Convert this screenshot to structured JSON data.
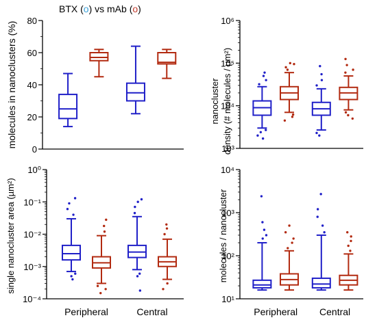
{
  "header": {
    "prefix": "BTX (",
    "btx_marker": "o",
    "middle": ") vs mAb (",
    "mab_marker": "o",
    "suffix": ")"
  },
  "colors": {
    "btx": "#1f1fc8",
    "mab": "#b22a10",
    "axis": "#000000"
  },
  "chart_data": [
    {
      "type": "box",
      "panel": "top-left",
      "ylabel": "molecules in nanoclusters (%)",
      "yscale": "linear",
      "ylim": [
        0,
        80
      ],
      "yticks": [
        "0",
        "20",
        "40",
        "60",
        "80"
      ],
      "categories": [],
      "series": [
        {
          "group": "BTX",
          "position": "peripheral",
          "min": 14,
          "q1": 19,
          "median": 25,
          "q3": 34,
          "max": 47,
          "outliers": []
        },
        {
          "group": "mAb",
          "position": "peripheral",
          "min": 45,
          "q1": 55,
          "median": 57,
          "q3": 60,
          "max": 62,
          "outliers": []
        },
        {
          "group": "BTX",
          "position": "central",
          "min": 22,
          "q1": 30,
          "median": 35,
          "q3": 41,
          "max": 64,
          "outliers": []
        },
        {
          "group": "mAb",
          "position": "central",
          "min": 44,
          "q1": 53,
          "median": 54,
          "q3": 60,
          "max": 62,
          "outliers": []
        }
      ]
    },
    {
      "type": "box",
      "panel": "top-right",
      "ylabel_line1": "nanocluster",
      "ylabel_line2": "density (# molecules / µm²)",
      "yscale": "log",
      "ylim": [
        1000,
        1000000
      ],
      "yticks": [
        "10³",
        "10⁴",
        "10⁵",
        "10⁶"
      ],
      "categories": [],
      "series": [
        {
          "group": "BTX",
          "position": "peripheral",
          "min": 3000,
          "q1": 6000,
          "median": 9000,
          "q3": 13000,
          "max": 28000,
          "outliers": [
            1700,
            2000,
            2400,
            2700,
            32000,
            40000,
            50000,
            60000
          ]
        },
        {
          "group": "mAb",
          "position": "peripheral",
          "min": 7000,
          "q1": 14000,
          "median": 20000,
          "q3": 28000,
          "max": 60000,
          "outliers": [
            4500,
            5500,
            6200,
            70000,
            80000,
            95000,
            100000
          ]
        },
        {
          "group": "BTX",
          "position": "central",
          "min": 2700,
          "q1": 6000,
          "median": 8500,
          "q3": 12000,
          "max": 25000,
          "outliers": [
            2000,
            2300,
            30000,
            40000,
            55000,
            85000
          ]
        },
        {
          "group": "mAb",
          "position": "central",
          "min": 8000,
          "q1": 14000,
          "median": 20000,
          "q3": 27000,
          "max": 50000,
          "outliers": [
            5000,
            6000,
            7000,
            60000,
            70000,
            90000,
            125000
          ]
        }
      ]
    },
    {
      "type": "box",
      "panel": "bottom-left",
      "ylabel": "single nanocluster area (µm²)",
      "yscale": "log",
      "ylim": [
        0.0001,
        1
      ],
      "yticks": [
        "10⁻⁴",
        "10⁻³",
        "10⁻²",
        "10⁻¹",
        "10⁰"
      ],
      "categories": [
        "Peripheral",
        "Central"
      ],
      "series": [
        {
          "group": "BTX",
          "position": "peripheral",
          "min": 0.0007,
          "q1": 0.0016,
          "median": 0.0025,
          "q3": 0.0045,
          "max": 0.03,
          "outliers": [
            0.0004,
            0.0005,
            0.0006,
            0.04,
            0.06,
            0.09,
            0.13
          ]
        },
        {
          "group": "mAb",
          "position": "peripheral",
          "min": 0.0003,
          "q1": 0.0009,
          "median": 0.0013,
          "q3": 0.002,
          "max": 0.009,
          "outliers": [
            0.00015,
            0.0002,
            0.00025,
            0.012,
            0.018,
            0.028
          ]
        },
        {
          "group": "BTX",
          "position": "central",
          "min": 0.0008,
          "q1": 0.0019,
          "median": 0.0028,
          "q3": 0.0045,
          "max": 0.035,
          "outliers": [
            0.00018,
            0.0005,
            0.0006,
            0.045,
            0.07,
            0.1,
            0.12
          ]
        },
        {
          "group": "mAb",
          "position": "central",
          "min": 0.0004,
          "q1": 0.001,
          "median": 0.0014,
          "q3": 0.002,
          "max": 0.007,
          "outliers": [
            0.0002,
            0.0003,
            0.01,
            0.015,
            0.02
          ]
        }
      ]
    },
    {
      "type": "box",
      "panel": "bottom-right",
      "ylabel": "molecules / nanocluster",
      "yscale": "log",
      "ylim": [
        10,
        10000
      ],
      "yticks": [
        "10¹",
        "10²",
        "10³",
        "10⁴"
      ],
      "categories": [
        "Peripheral",
        "Central"
      ],
      "series": [
        {
          "group": "BTX",
          "position": "peripheral",
          "min": 16,
          "q1": 18,
          "median": 21,
          "q3": 27,
          "max": 200,
          "outliers": [
            250,
            300,
            400,
            600,
            2400
          ]
        },
        {
          "group": "mAb",
          "position": "peripheral",
          "min": 16,
          "q1": 21,
          "median": 28,
          "q3": 38,
          "max": 130,
          "outliers": [
            150,
            200,
            250,
            350,
            500
          ]
        },
        {
          "group": "BTX",
          "position": "central",
          "min": 16,
          "q1": 18,
          "median": 22,
          "q3": 30,
          "max": 300,
          "outliers": [
            350,
            500,
            800,
            1200,
            2700
          ]
        },
        {
          "group": "mAb",
          "position": "central",
          "min": 16,
          "q1": 21,
          "median": 27,
          "q3": 35,
          "max": 110,
          "outliers": [
            130,
            170,
            220,
            280,
            350
          ]
        }
      ]
    }
  ]
}
